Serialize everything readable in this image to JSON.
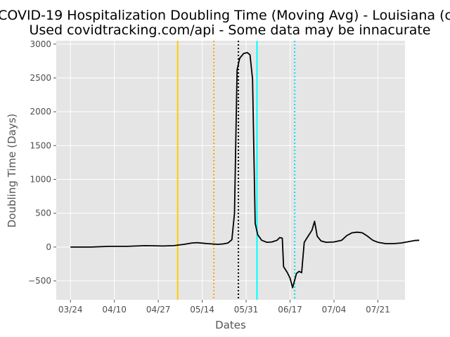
{
  "chart_data": {
    "type": "line",
    "title": "COVID-19 Hospitalization Doubling Time (Moving Avg) - Louisiana (c",
    "subtitle": "Used covidtracking.com/api - Some data may be innacurate",
    "xlabel": "Dates",
    "ylabel": "Doubling Time (Days)",
    "x_ticks": [
      "03/24",
      "04/10",
      "04/27",
      "05/14",
      "05/31",
      "06/17",
      "07/04",
      "07/21"
    ],
    "y_ticks": [
      -500,
      0,
      500,
      1000,
      1500,
      2000,
      2500,
      3000
    ],
    "xlim": [
      -5.5,
      129.5
    ],
    "ylim": [
      -780,
      3050
    ],
    "grid": true,
    "legend": "none",
    "x_unit": "days since 03/24",
    "series": [
      {
        "name": "",
        "color": "#000000",
        "points": [
          [
            0,
            0
          ],
          [
            8,
            0
          ],
          [
            15,
            10
          ],
          [
            22,
            10
          ],
          [
            29,
            20
          ],
          [
            36,
            15
          ],
          [
            40,
            20
          ],
          [
            44,
            40
          ],
          [
            47,
            60
          ],
          [
            49,
            65
          ],
          [
            51,
            58
          ],
          [
            53,
            50
          ],
          [
            55,
            45
          ],
          [
            57,
            40
          ],
          [
            59,
            45
          ],
          [
            61,
            60
          ],
          [
            62.5,
            110
          ],
          [
            63.5,
            500
          ],
          [
            64.5,
            2620
          ],
          [
            65.5,
            2790
          ],
          [
            67,
            2860
          ],
          [
            68.5,
            2875
          ],
          [
            69.5,
            2840
          ],
          [
            70.5,
            2480
          ],
          [
            71.5,
            350
          ],
          [
            72.5,
            180
          ],
          [
            74,
            100
          ],
          [
            76,
            70
          ],
          [
            78,
            75
          ],
          [
            80,
            100
          ],
          [
            81,
            140
          ],
          [
            82,
            130
          ],
          [
            82.5,
            -290
          ],
          [
            84,
            -380
          ],
          [
            85,
            -460
          ],
          [
            86,
            -600
          ],
          [
            87.5,
            -390
          ],
          [
            88.5,
            -360
          ],
          [
            89.5,
            -380
          ],
          [
            90.5,
            70
          ],
          [
            92,
            160
          ],
          [
            93.5,
            250
          ],
          [
            94.5,
            380
          ],
          [
            95.5,
            160
          ],
          [
            97,
            90
          ],
          [
            99,
            70
          ],
          [
            102,
            75
          ],
          [
            105,
            100
          ],
          [
            107,
            170
          ],
          [
            109,
            210
          ],
          [
            111,
            220
          ],
          [
            113,
            210
          ],
          [
            115,
            160
          ],
          [
            117,
            100
          ],
          [
            119,
            70
          ],
          [
            122,
            50
          ],
          [
            125,
            50
          ],
          [
            128,
            60
          ],
          [
            131,
            80
          ],
          [
            133,
            95
          ],
          [
            135,
            100
          ]
        ]
      }
    ],
    "vertical_lines": [
      {
        "x": 41.5,
        "color": "#ffcc00",
        "style": "solid"
      },
      {
        "x": 55.5,
        "color": "#ffa500",
        "style": "dotted"
      },
      {
        "x": 65,
        "color": "#000000",
        "style": "dotted"
      },
      {
        "x": 72.2,
        "color": "#00ffff",
        "style": "solid"
      },
      {
        "x": 86.8,
        "color": "#00e5ee",
        "style": "dotted"
      }
    ]
  }
}
